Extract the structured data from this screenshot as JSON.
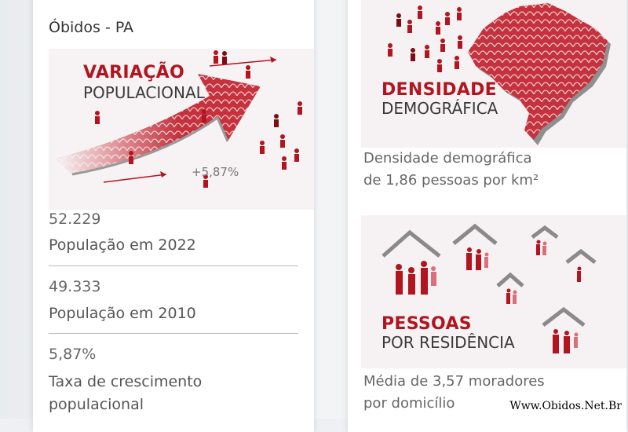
{
  "city_title": "Óbidos - PA",
  "variacao": {
    "title_bold": "VARIAÇÃO",
    "title_light": "POPULACIONAL",
    "percent_label": "+5,87%"
  },
  "stats": [
    {
      "value": "52.229",
      "label": "População em 2022"
    },
    {
      "value": "49.333",
      "label": "População em 2010"
    },
    {
      "value": "5,87%",
      "label": "Taxa de crescimento populacional"
    }
  ],
  "densidade": {
    "title_bold": "DENSIDADE",
    "title_light": "DEMOGRÁFICA",
    "caption_line1": "Densidade demográfica",
    "caption_line2": "de 1,86 pessoas por km²"
  },
  "pessoas": {
    "title_bold": "PESSOAS",
    "title_light": "POR RESIDÊNCIA",
    "caption_line1": "Média de 3,57 moradores",
    "caption_line2": "por domicílio"
  },
  "watermark": "Www.Obidos.Net.Br",
  "colors": {
    "accent": "#b1151f",
    "dark_red": "#7a0e14",
    "light_red": "#d9707a"
  }
}
